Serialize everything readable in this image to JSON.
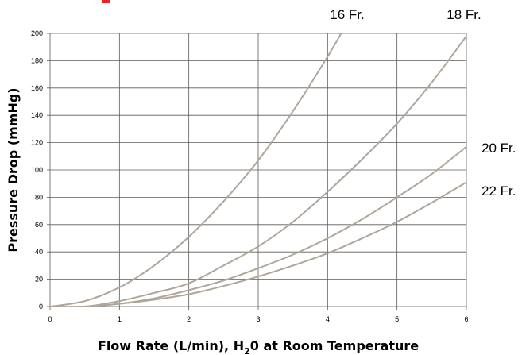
{
  "chart_data": {
    "type": "line",
    "title": "",
    "xlabel": "Flow Rate (L/min), H",
    "xlabel_sub": "2",
    "xlabel_tail": "0 at Room Temperature",
    "ylabel": "Pressure Drop (mmHg)",
    "xlim": [
      0,
      6
    ],
    "ylim": [
      0,
      200
    ],
    "x_ticks": [
      "0",
      "1",
      "2",
      "3",
      "4",
      "5",
      "6"
    ],
    "y_ticks": [
      "0",
      "20",
      "40",
      "60",
      "80",
      "100",
      "120",
      "140",
      "160",
      "180",
      "200"
    ],
    "grid": true,
    "line_color": "#b0a59a",
    "grid_color": "#5a5a5a",
    "series": [
      {
        "name": "16 Fr.",
        "x": [
          0,
          0.5,
          1,
          1.5,
          2,
          2.5,
          3,
          3.5,
          4,
          4.25
        ],
        "values": [
          0,
          4,
          14,
          30,
          51,
          77,
          107,
          143,
          183,
          205
        ]
      },
      {
        "name": "18 Fr.",
        "x": [
          0,
          0.5,
          1,
          1.5,
          2,
          2.5,
          3,
          3.5,
          4,
          4.5,
          5,
          5.5,
          6
        ],
        "values": [
          0,
          0,
          4,
          10,
          17,
          30,
          44,
          62,
          84,
          108,
          134,
          164,
          198
        ]
      },
      {
        "name": "20 Fr.",
        "x": [
          0,
          0.5,
          1,
          1.5,
          2,
          2.5,
          3,
          3.5,
          4,
          4.5,
          5,
          5.5,
          6
        ],
        "values": [
          0,
          0,
          2,
          6,
          12,
          19,
          28,
          38,
          50,
          64,
          80,
          97,
          117
        ]
      },
      {
        "name": "22 Fr.",
        "x": [
          0,
          0.5,
          1,
          1.5,
          2,
          2.5,
          3,
          3.5,
          4,
          4.5,
          5,
          5.5,
          6
        ],
        "values": [
          0,
          0,
          2,
          5,
          9,
          15,
          22,
          30,
          39,
          50,
          62,
          76,
          91
        ]
      }
    ]
  }
}
